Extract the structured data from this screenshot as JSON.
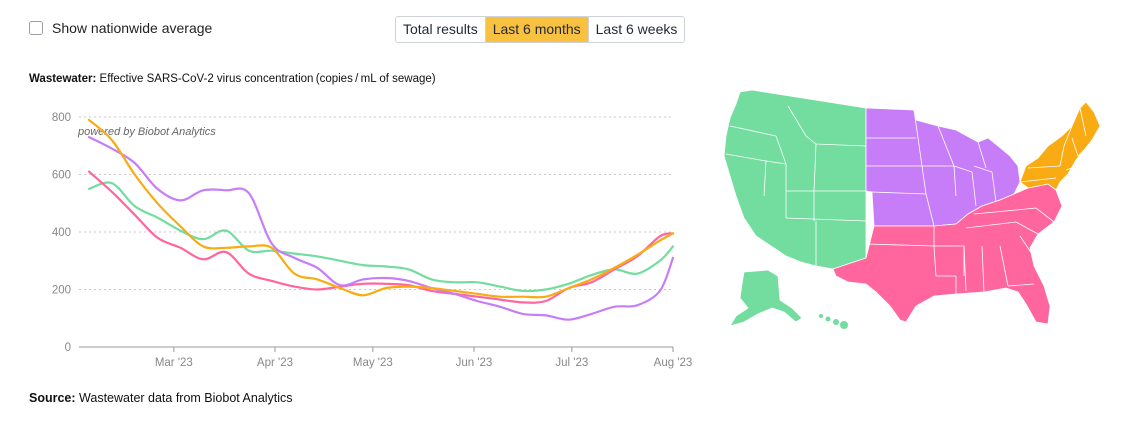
{
  "controls": {
    "nationwide_label": "Show nationwide average",
    "nationwide_checked": false,
    "ranges": [
      "Total results",
      "Last 6 months",
      "Last 6 weeks"
    ],
    "active_range": "Last 6 months"
  },
  "chart_header": {
    "bold": "Wastewater:",
    "text": "Effective SARS-CoV-2 virus concentration (copies / mL of sewage)"
  },
  "watermark": "powered by Biobot Analytics",
  "source": {
    "bold": "Source:",
    "text": "Wastewater data from Biobot Analytics"
  },
  "colors": {
    "northeast": "#f9ab13",
    "midwest": "#c77df7",
    "south": "#ff669d",
    "west": "#72dd9f",
    "grid": "#c8c8c8",
    "axis_text": "#888888"
  },
  "chart_data": {
    "type": "line",
    "x_ticks": [
      "Mar '23",
      "Apr '23",
      "May '23",
      "Jun '23",
      "Jul '23",
      "Aug '23"
    ],
    "x_tick_dates": [
      "2023-03-01",
      "2023-04-01",
      "2023-05-01",
      "2023-06-01",
      "2023-07-01",
      "2023-08-01"
    ],
    "y_ticks": [
      0,
      200,
      400,
      600,
      800
    ],
    "ylim": [
      0,
      800
    ],
    "xlim": [
      "2023-02-03",
      "2023-08-01"
    ],
    "grid": true,
    "series": [
      {
        "region": "northeast",
        "x": [
          "2023-02-03",
          "2023-02-10",
          "2023-02-17",
          "2023-02-24",
          "2023-03-03",
          "2023-03-10",
          "2023-03-17",
          "2023-03-24",
          "2023-03-31",
          "2023-04-07",
          "2023-04-14",
          "2023-04-21",
          "2023-04-28",
          "2023-05-05",
          "2023-05-12",
          "2023-05-19",
          "2023-05-26",
          "2023-06-02",
          "2023-06-09",
          "2023-06-16",
          "2023-06-23",
          "2023-06-30",
          "2023-07-07",
          "2023-07-14",
          "2023-07-21",
          "2023-07-28",
          "2023-08-01"
        ],
        "values": [
          790,
          720,
          600,
          500,
          420,
          350,
          345,
          350,
          345,
          255,
          235,
          205,
          180,
          205,
          210,
          205,
          195,
          185,
          175,
          175,
          175,
          205,
          235,
          275,
          320,
          370,
          395
        ]
      },
      {
        "region": "midwest",
        "x": [
          "2023-02-03",
          "2023-02-10",
          "2023-02-17",
          "2023-02-24",
          "2023-03-03",
          "2023-03-10",
          "2023-03-17",
          "2023-03-24",
          "2023-03-31",
          "2023-04-07",
          "2023-04-14",
          "2023-04-21",
          "2023-04-28",
          "2023-05-05",
          "2023-05-12",
          "2023-05-19",
          "2023-05-26",
          "2023-06-02",
          "2023-06-09",
          "2023-06-16",
          "2023-06-23",
          "2023-06-30",
          "2023-07-07",
          "2023-07-14",
          "2023-07-21",
          "2023-07-28",
          "2023-08-01"
        ],
        "values": [
          730,
          690,
          640,
          550,
          510,
          545,
          545,
          535,
          360,
          310,
          275,
          215,
          235,
          240,
          230,
          205,
          185,
          160,
          140,
          115,
          110,
          95,
          115,
          140,
          145,
          195,
          310
        ]
      },
      {
        "region": "south",
        "x": [
          "2023-02-03",
          "2023-02-10",
          "2023-02-17",
          "2023-02-24",
          "2023-03-03",
          "2023-03-10",
          "2023-03-17",
          "2023-03-24",
          "2023-03-31",
          "2023-04-07",
          "2023-04-14",
          "2023-04-21",
          "2023-04-28",
          "2023-05-05",
          "2023-05-12",
          "2023-05-19",
          "2023-05-26",
          "2023-06-02",
          "2023-06-09",
          "2023-06-16",
          "2023-06-23",
          "2023-06-30",
          "2023-07-07",
          "2023-07-14",
          "2023-07-21",
          "2023-07-28",
          "2023-08-01"
        ],
        "values": [
          610,
          540,
          460,
          380,
          345,
          305,
          330,
          255,
          230,
          210,
          200,
          210,
          220,
          220,
          215,
          195,
          185,
          175,
          165,
          155,
          160,
          205,
          225,
          270,
          315,
          385,
          395
        ]
      },
      {
        "region": "west",
        "x": [
          "2023-02-03",
          "2023-02-10",
          "2023-02-17",
          "2023-02-24",
          "2023-03-03",
          "2023-03-10",
          "2023-03-17",
          "2023-03-24",
          "2023-03-31",
          "2023-04-07",
          "2023-04-14",
          "2023-04-21",
          "2023-04-28",
          "2023-05-05",
          "2023-05-12",
          "2023-05-19",
          "2023-05-26",
          "2023-06-02",
          "2023-06-09",
          "2023-06-16",
          "2023-06-23",
          "2023-06-30",
          "2023-07-07",
          "2023-07-14",
          "2023-07-21",
          "2023-07-28",
          "2023-08-01"
        ],
        "values": [
          550,
          570,
          490,
          450,
          405,
          375,
          405,
          335,
          335,
          325,
          315,
          300,
          285,
          280,
          270,
          235,
          225,
          225,
          210,
          195,
          200,
          220,
          250,
          270,
          255,
          300,
          350
        ]
      }
    ]
  },
  "map_regions": [
    {
      "name": "west",
      "states": [
        "WA",
        "OR",
        "CA",
        "NV",
        "ID",
        "MT",
        "WY",
        "UT",
        "CO",
        "AZ",
        "NM",
        "AK",
        "HI"
      ]
    },
    {
      "name": "midwest",
      "states": [
        "ND",
        "SD",
        "NE",
        "KS",
        "MN",
        "IA",
        "MO",
        "WI",
        "IL",
        "MI",
        "IN",
        "OH"
      ]
    },
    {
      "name": "south",
      "states": [
        "TX",
        "OK",
        "AR",
        "LA",
        "MS",
        "AL",
        "TN",
        "KY",
        "GA",
        "FL",
        "SC",
        "NC",
        "VA",
        "WV",
        "MD",
        "DE"
      ]
    },
    {
      "name": "northeast",
      "states": [
        "PA",
        "NY",
        "NJ",
        "CT",
        "RI",
        "MA",
        "VT",
        "NH",
        "ME"
      ]
    }
  ]
}
